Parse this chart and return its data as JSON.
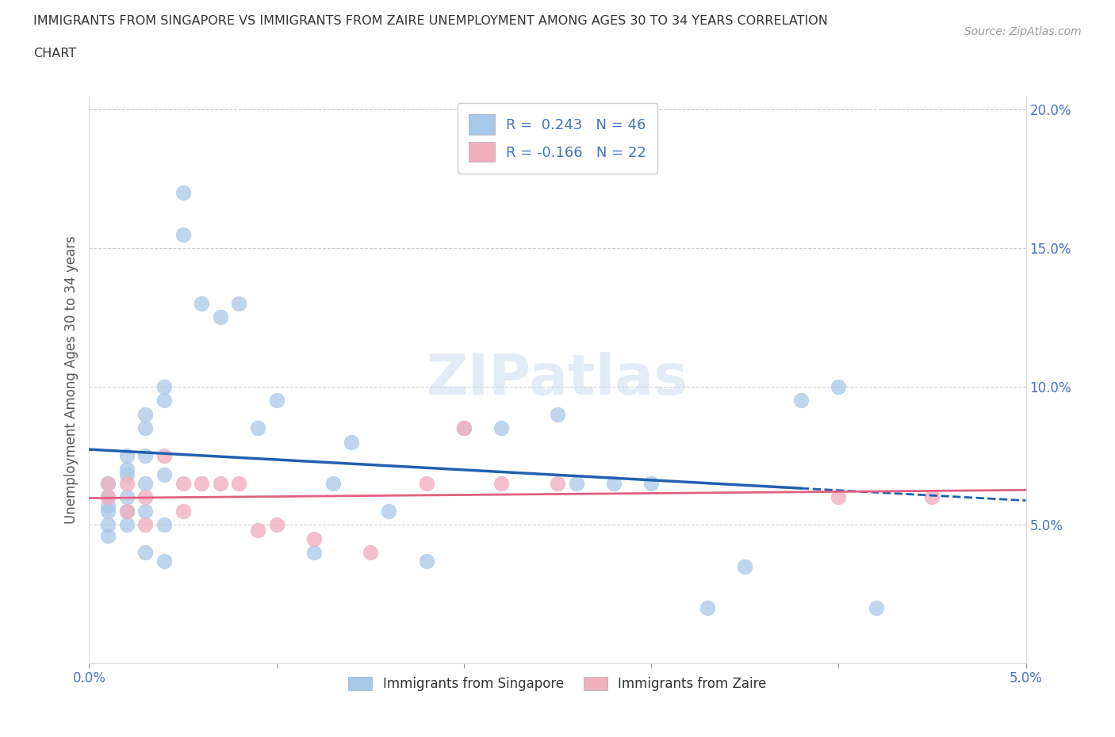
{
  "title_line1": "IMMIGRANTS FROM SINGAPORE VS IMMIGRANTS FROM ZAIRE UNEMPLOYMENT AMONG AGES 30 TO 34 YEARS CORRELATION",
  "title_line2": "CHART",
  "source": "Source: ZipAtlas.com",
  "ylabel": "Unemployment Among Ages 30 to 34 years",
  "xlim": [
    0.0,
    0.05
  ],
  "ylim": [
    0.0,
    0.205
  ],
  "singapore_color": "#a8c8e8",
  "singapore_color_line": "#2060b0",
  "zaire_color": "#f0b0c0",
  "zaire_color_line": "#e06080",
  "singapore_R": 0.243,
  "singapore_N": 46,
  "zaire_R": -0.166,
  "zaire_N": 22,
  "sg_x": [
    0.001,
    0.001,
    0.001,
    0.002,
    0.001,
    0.001,
    0.001,
    0.002,
    0.002,
    0.002,
    0.002,
    0.002,
    0.003,
    0.003,
    0.003,
    0.003,
    0.003,
    0.004,
    0.004,
    0.004,
    0.004,
    0.003,
    0.004,
    0.005,
    0.005,
    0.006,
    0.007,
    0.008,
    0.009,
    0.01,
    0.012,
    0.013,
    0.014,
    0.016,
    0.018,
    0.02,
    0.022,
    0.025,
    0.026,
    0.028,
    0.03,
    0.033,
    0.035,
    0.038,
    0.04,
    0.042
  ],
  "sg_y": [
    0.065,
    0.06,
    0.057,
    0.07,
    0.055,
    0.05,
    0.046,
    0.075,
    0.068,
    0.06,
    0.055,
    0.05,
    0.09,
    0.085,
    0.075,
    0.065,
    0.055,
    0.1,
    0.095,
    0.068,
    0.05,
    0.04,
    0.037,
    0.17,
    0.155,
    0.13,
    0.125,
    0.13,
    0.085,
    0.095,
    0.04,
    0.065,
    0.08,
    0.055,
    0.037,
    0.085,
    0.085,
    0.09,
    0.065,
    0.065,
    0.065,
    0.02,
    0.035,
    0.095,
    0.1,
    0.02
  ],
  "zr_x": [
    0.001,
    0.001,
    0.002,
    0.002,
    0.003,
    0.003,
    0.004,
    0.005,
    0.005,
    0.006,
    0.007,
    0.008,
    0.009,
    0.01,
    0.012,
    0.015,
    0.018,
    0.02,
    0.022,
    0.025,
    0.04,
    0.045
  ],
  "zr_y": [
    0.065,
    0.06,
    0.065,
    0.055,
    0.06,
    0.05,
    0.075,
    0.065,
    0.055,
    0.065,
    0.065,
    0.065,
    0.048,
    0.05,
    0.045,
    0.04,
    0.065,
    0.085,
    0.065,
    0.065,
    0.06,
    0.06
  ]
}
